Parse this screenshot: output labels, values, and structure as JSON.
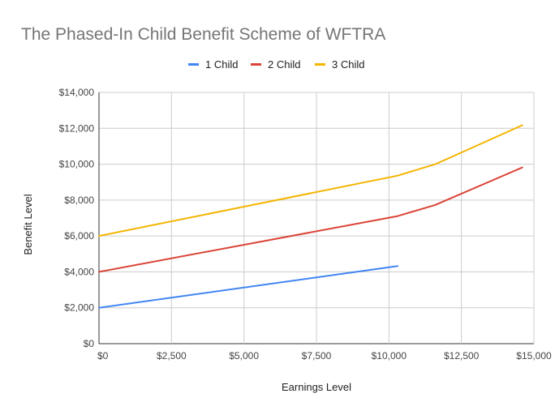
{
  "chart_data": {
    "type": "line",
    "title": "The Phased-In Child Benefit Scheme of WFTRA",
    "xlabel": "Earnings Level",
    "ylabel": "Benefit Level",
    "xlim": [
      0,
      15000
    ],
    "ylim": [
      0,
      14000
    ],
    "x_ticks": [
      0,
      2500,
      5000,
      7500,
      10000,
      12500,
      15000
    ],
    "x_tick_labels": [
      "$0",
      "$2,500",
      "$5,000",
      "$7,500",
      "$10,000",
      "$12,500",
      "$15,000"
    ],
    "y_ticks": [
      0,
      2000,
      4000,
      6000,
      8000,
      10000,
      12000,
      14000
    ],
    "y_tick_labels": [
      "$0",
      "$2,000",
      "$4,000",
      "$6,000",
      "$8,000",
      "$10,000",
      "$12,000",
      "$14,000"
    ],
    "grid": true,
    "legend_position": "top",
    "series": [
      {
        "name": "1 Child",
        "color": "#4285f4",
        "points": [
          [
            0,
            2000
          ],
          [
            10300,
            4320
          ]
        ]
      },
      {
        "name": "2 Child",
        "color": "#db4437",
        "points": [
          [
            0,
            4000
          ],
          [
            10300,
            7110
          ],
          [
            11600,
            7730
          ],
          [
            14600,
            9820
          ]
        ]
      },
      {
        "name": "3 Child",
        "color": "#f4b400",
        "points": [
          [
            0,
            6000
          ],
          [
            10300,
            9360
          ],
          [
            11600,
            10000
          ],
          [
            14600,
            12170
          ]
        ]
      }
    ]
  }
}
